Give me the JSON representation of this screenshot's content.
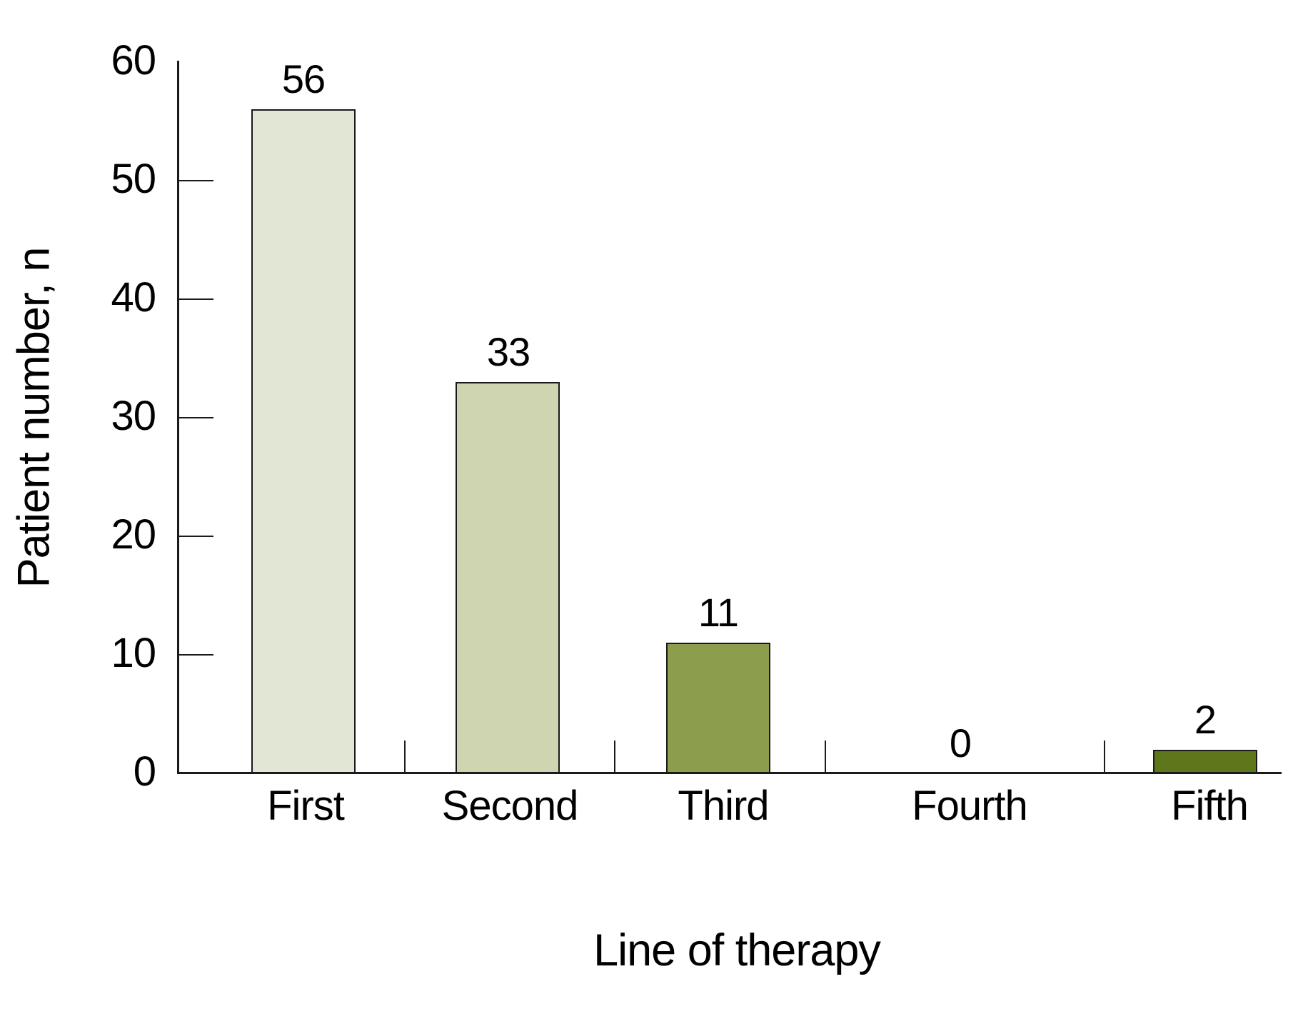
{
  "chart_data": {
    "type": "bar",
    "categories": [
      "First",
      "Second",
      "Third",
      "Fourth",
      "Fifth"
    ],
    "values": [
      56,
      33,
      11,
      0,
      2
    ],
    "title": "",
    "xlabel": "Line of therapy",
    "ylabel": "Patient number, n",
    "ylim": [
      0,
      60
    ],
    "yticks": [
      0,
      10,
      20,
      30,
      40,
      50,
      60
    ],
    "bar_colors": [
      "#e2e6d4",
      "#cfd5b1",
      "#8c9d4e",
      null,
      "#5e771b"
    ],
    "value_labels_shown": true,
    "grid": false,
    "legend": null
  },
  "colors": {
    "background": "#ffffff",
    "axis": "#1a1a1a",
    "bar_border": "#1a1a1a",
    "text": "#000000"
  }
}
